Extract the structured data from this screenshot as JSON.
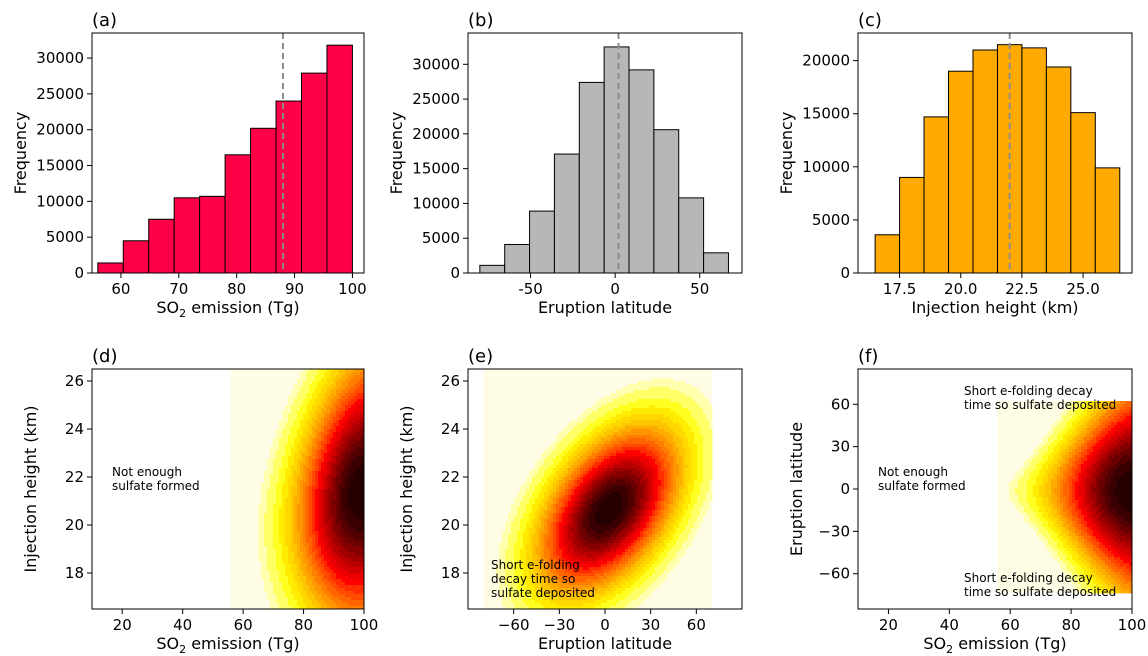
{
  "chart_data": [
    {
      "panel": "(a)",
      "type": "bar",
      "xlabel_main": "SO",
      "xlabel_sub": "2",
      "xlabel_rest": " emission (Tg)",
      "ylabel": "Frequency",
      "xlim": [
        55,
        102
      ],
      "ylim": [
        0,
        33500
      ],
      "xticks": [
        60,
        70,
        80,
        90,
        100
      ],
      "yticks": [
        0,
        5000,
        10000,
        15000,
        20000,
        25000,
        30000
      ],
      "bin_edges": [
        56,
        60.4,
        64.8,
        69.2,
        73.6,
        78,
        82.4,
        86.8,
        91.2,
        95.6,
        100
      ],
      "values": [
        1400,
        4500,
        7500,
        10500,
        10700,
        16500,
        20200,
        24000,
        27900,
        31800
      ],
      "vline": 88,
      "color": "#ff0047"
    },
    {
      "panel": "(b)",
      "type": "bar",
      "xlabel": "Eruption latitude",
      "ylabel": "Frequency",
      "xlim": [
        -87,
        75
      ],
      "ylim": [
        0,
        34500
      ],
      "xticks": [
        -50,
        0,
        50
      ],
      "yticks": [
        0,
        5000,
        10000,
        15000,
        20000,
        25000,
        30000
      ],
      "bin_edges": [
        -80,
        -65.3,
        -50.6,
        -35.9,
        -21.2,
        -6.5,
        8.2,
        22.9,
        37.6,
        52.3,
        67
      ],
      "values": [
        1100,
        4100,
        8900,
        17100,
        27400,
        32500,
        29200,
        20600,
        10800,
        2900
      ],
      "vline": 2,
      "color": "#b7b7b7"
    },
    {
      "panel": "(c)",
      "type": "bar",
      "xlabel": "Injection height (km)",
      "ylabel": "Frequency",
      "xlim": [
        15.8,
        27
      ],
      "ylim": [
        0,
        22600
      ],
      "xticks": [
        17.5,
        20.0,
        22.5,
        25.0
      ],
      "xtick_labels": [
        "17.5",
        "20.0",
        "22.5",
        "25.0"
      ],
      "yticks": [
        0,
        5000,
        10000,
        15000,
        20000
      ],
      "bin_edges": [
        16.5,
        17.5,
        18.5,
        19.5,
        20.5,
        21.5,
        22.5,
        23.5,
        24.5,
        25.5,
        26.5
      ],
      "values": [
        3600,
        9000,
        14700,
        19000,
        21000,
        21500,
        21200,
        19400,
        15100,
        9900
      ],
      "vline": 22,
      "color": "#ffaa00"
    },
    {
      "panel": "(d)",
      "type": "heatmap",
      "xlabel_main": "SO",
      "xlabel_sub": "2",
      "xlabel_rest": " emission (Tg)",
      "ylabel": "Injection height (km)",
      "xlim": [
        10,
        100
      ],
      "ylim": [
        16.5,
        26.5
      ],
      "xticks": [
        20,
        40,
        60,
        80,
        100
      ],
      "yticks": [
        18,
        20,
        22,
        24,
        26
      ],
      "annotations": [
        {
          "lines": [
            "Not enough",
            "sulfate formed"
          ]
        }
      ]
    },
    {
      "panel": "(e)",
      "type": "heatmap",
      "xlabel": "Eruption latitude",
      "ylabel": "Injection height (km)",
      "xlim": [
        -90,
        90
      ],
      "ylim": [
        16.5,
        26.5
      ],
      "xticks": [
        -60,
        -30,
        0,
        30,
        60
      ],
      "xtick_labels": [
        "−60",
        "−30",
        "0",
        "30",
        "60"
      ],
      "yticks": [
        18,
        20,
        22,
        24,
        26
      ],
      "annotations": [
        {
          "lines": [
            "Short e-folding",
            "decay time so",
            "sulfate deposited"
          ]
        }
      ]
    },
    {
      "panel": "(f)",
      "type": "heatmap",
      "xlabel_main": "SO",
      "xlabel_sub": "2",
      "xlabel_rest": " emission (Tg)",
      "ylabel": "Eruption latitude",
      "xlim": [
        10,
        100
      ],
      "ylim": [
        -85,
        85
      ],
      "xticks": [
        20,
        40,
        60,
        80,
        100
      ],
      "yticks": [
        -60,
        -30,
        0,
        30,
        60
      ],
      "ytick_labels": [
        "−60",
        "−30",
        "0",
        "30",
        "60"
      ],
      "annotations": [
        {
          "lines": [
            "Short e-folding decay",
            "time so sulfate deposited"
          ]
        },
        {
          "lines": [
            "Not enough",
            "sulfate formed"
          ]
        },
        {
          "lines": [
            "Short e-folding decay",
            "time so sulfate deposited"
          ]
        }
      ]
    }
  ]
}
